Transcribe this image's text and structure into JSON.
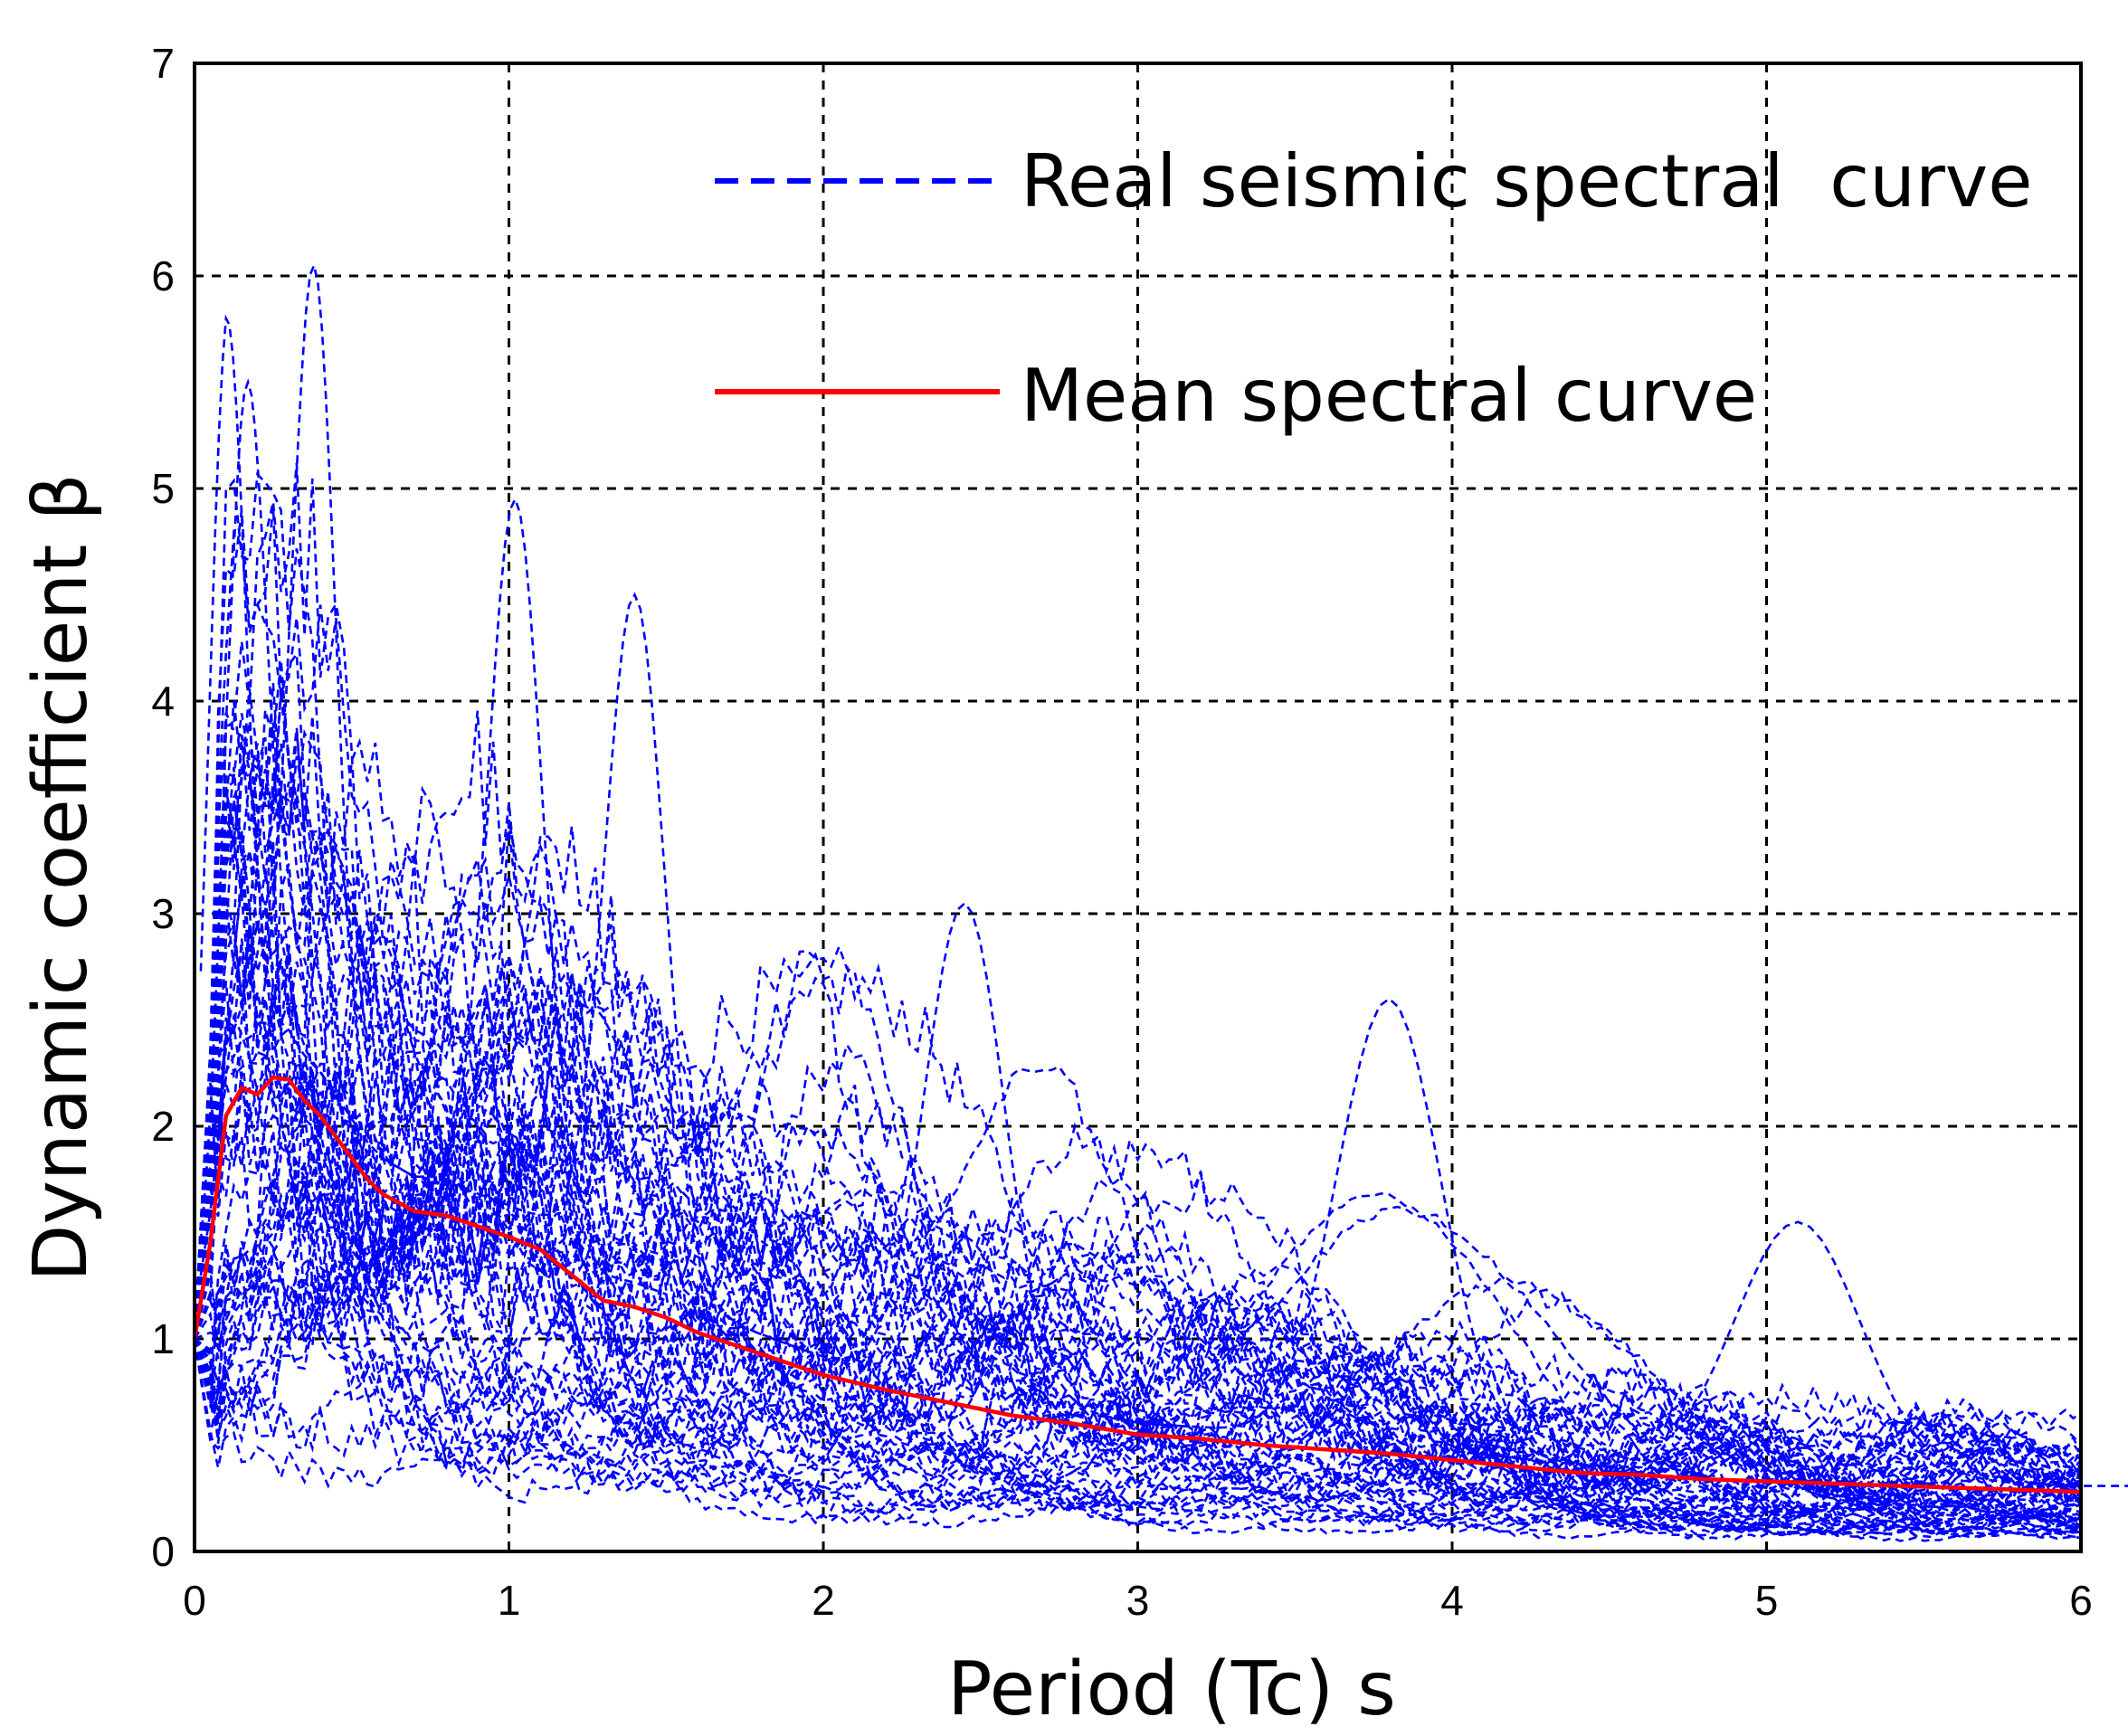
{
  "chart_data": {
    "type": "line",
    "title": "",
    "xlabel": "Period (Tc)  s",
    "ylabel": "Dynamic coefficient β",
    "xlim": [
      0,
      6
    ],
    "ylim": [
      0,
      7
    ],
    "xticks": [
      "0",
      "1",
      "2",
      "3",
      "4",
      "5",
      "6"
    ],
    "yticks": [
      "0",
      "1",
      "2",
      "3",
      "4",
      "5",
      "6",
      "7"
    ],
    "grid": true,
    "grid_style": "dashed",
    "legend_position": "top-right",
    "series": [
      {
        "name": "Real seismic spectral  curve",
        "style": "dashed",
        "color": "#0000ff",
        "description": "Many individual record spectra; peaks up to about 6.05 near T=0.38 s",
        "envelope_peaks": [
          {
            "x": 0.1,
            "y": 5.8
          },
          {
            "x": 0.17,
            "y": 5.5
          },
          {
            "x": 0.38,
            "y": 6.05
          },
          {
            "x": 1.02,
            "y": 4.95
          },
          {
            "x": 1.4,
            "y": 4.5
          },
          {
            "x": 2.45,
            "y": 3.05
          },
          {
            "x": 3.8,
            "y": 2.6
          },
          {
            "x": 5.1,
            "y": 1.55
          }
        ]
      },
      {
        "name": "Mean spectral curve",
        "style": "solid",
        "color": "#ff0000",
        "x": [
          0,
          0.05,
          0.1,
          0.15,
          0.2,
          0.25,
          0.3,
          0.35,
          0.4,
          0.45,
          0.5,
          0.55,
          0.6,
          0.7,
          0.8,
          0.9,
          1.0,
          1.1,
          1.2,
          1.3,
          1.4,
          1.5,
          1.6,
          1.8,
          2.0,
          2.2,
          2.4,
          2.6,
          2.8,
          3.0,
          3.2,
          3.4,
          3.6,
          3.8,
          4.0,
          4.2,
          4.4,
          4.6,
          4.8,
          5.0,
          5.2,
          5.4,
          5.6,
          5.8,
          6.0
        ],
        "values": [
          1.0,
          1.45,
          2.05,
          2.18,
          2.15,
          2.23,
          2.22,
          2.12,
          2.05,
          1.95,
          1.85,
          1.75,
          1.68,
          1.6,
          1.58,
          1.53,
          1.48,
          1.42,
          1.3,
          1.18,
          1.15,
          1.1,
          1.03,
          0.93,
          0.83,
          0.76,
          0.7,
          0.64,
          0.6,
          0.55,
          0.53,
          0.5,
          0.48,
          0.46,
          0.43,
          0.4,
          0.37,
          0.36,
          0.34,
          0.33,
          0.32,
          0.31,
          0.3,
          0.29,
          0.28
        ]
      }
    ]
  },
  "colors": {
    "real_curve": "#0000ff",
    "mean_curve": "#ff0000",
    "grid": "#000000"
  }
}
